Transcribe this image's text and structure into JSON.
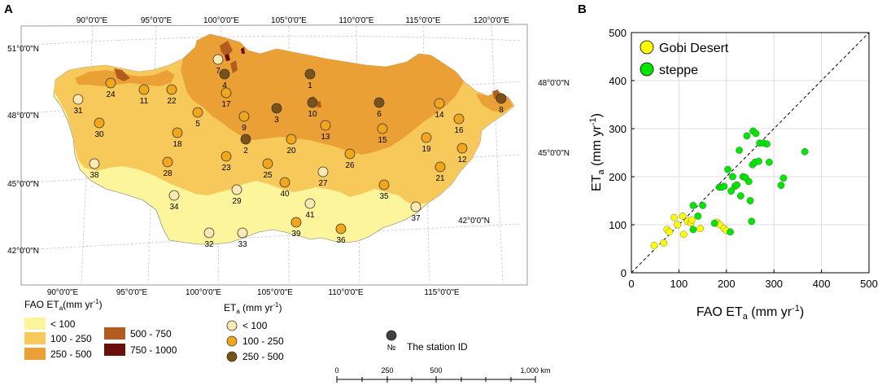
{
  "panel_a": {
    "letter": "A",
    "top_lon_labels": [
      "90°0'0\"E",
      "95°0'0\"E",
      "100°0'0\"E",
      "105°0'0\"E",
      "110°0'0\"E",
      "115°0'0\"E",
      "120°0'0\"E"
    ],
    "bottom_lon_labels": [
      "90°0'0\"E",
      "95°0'0\"E",
      "100°0'0\"E",
      "105°0'0\"E",
      "110°0'0\"E",
      "115°0'0\"E"
    ],
    "left_lat_labels": [
      "51°0'0\"N",
      "48°0'0\"N",
      "45°0'0\"N",
      "42°0'0\"N"
    ],
    "right_lat_labels": [
      "48°0'0\"N",
      "45°0'0\"N",
      "42°0'0\"N"
    ],
    "stations": [
      {
        "id": "1",
        "class": "250-500"
      },
      {
        "id": "2",
        "class": "250-500"
      },
      {
        "id": "3",
        "class": "250-500"
      },
      {
        "id": "4",
        "class": "250-500"
      },
      {
        "id": "5",
        "class": "100-250"
      },
      {
        "id": "6",
        "class": "250-500"
      },
      {
        "id": "7",
        "class": "<100"
      },
      {
        "id": "8",
        "class": "250-500"
      },
      {
        "id": "9",
        "class": "100-250"
      },
      {
        "id": "10",
        "class": "250-500"
      },
      {
        "id": "11",
        "class": "100-250"
      },
      {
        "id": "12",
        "class": "100-250"
      },
      {
        "id": "13",
        "class": "100-250"
      },
      {
        "id": "14",
        "class": "100-250"
      },
      {
        "id": "15",
        "class": "100-250"
      },
      {
        "id": "16",
        "class": "100-250"
      },
      {
        "id": "17",
        "class": "100-250"
      },
      {
        "id": "18",
        "class": "100-250"
      },
      {
        "id": "19",
        "class": "100-250"
      },
      {
        "id": "20",
        "class": "100-250"
      },
      {
        "id": "21",
        "class": "100-250"
      },
      {
        "id": "22",
        "class": "100-250"
      },
      {
        "id": "23",
        "class": "100-250"
      },
      {
        "id": "24",
        "class": "100-250"
      },
      {
        "id": "25",
        "class": "100-250"
      },
      {
        "id": "26",
        "class": "100-250"
      },
      {
        "id": "27",
        "class": "<100"
      },
      {
        "id": "28",
        "class": "100-250"
      },
      {
        "id": "29",
        "class": "<100"
      },
      {
        "id": "30",
        "class": "100-250"
      },
      {
        "id": "31",
        "class": "<100"
      },
      {
        "id": "32",
        "class": "<100"
      },
      {
        "id": "33",
        "class": "<100"
      },
      {
        "id": "34",
        "class": "<100"
      },
      {
        "id": "35",
        "class": "100-250"
      },
      {
        "id": "36",
        "class": "100-250"
      },
      {
        "id": "37",
        "class": "<100"
      },
      {
        "id": "38",
        "class": "<100"
      },
      {
        "id": "39",
        "class": "100-250"
      },
      {
        "id": "40",
        "class": "100-250"
      },
      {
        "id": "41",
        "class": "<100"
      }
    ],
    "legend_fao": {
      "title_main": "FAO ET",
      "title_sub": "a",
      "title_unit": "(mm yr",
      "title_exp": "-1",
      "title_close": ")",
      "items": [
        {
          "label": "< 100",
          "color": "#fdf59b"
        },
        {
          "label": "100 - 250",
          "color": "#f6c95a"
        },
        {
          "label": "250 - 500",
          "color": "#eaa035"
        },
        {
          "label": "500 - 750",
          "color": "#b35c1f"
        },
        {
          "label": "750 - 1000",
          "color": "#6b0f0b"
        }
      ]
    },
    "legend_eta": {
      "title_main": "ET",
      "title_sub": "a",
      "title_unit": " (mm yr",
      "title_exp": "-1",
      "title_close": ")",
      "items": [
        {
          "label": "< 100",
          "color": "#fbe9b4"
        },
        {
          "label": "100 - 250",
          "color": "#f2a61a"
        },
        {
          "label": "250 - 500",
          "color": "#7a5116"
        }
      ]
    },
    "legend_station": {
      "symbol": "№",
      "label": "The station ID",
      "color": "#404040"
    },
    "scalebar": {
      "labels": [
        "0",
        "250",
        "500",
        "1,000 km"
      ]
    }
  },
  "chart_data": {
    "type": "scatter",
    "panel_letter": "B",
    "xlabel_main": "FAO ET",
    "xlabel_sub": "a",
    "xlabel_unit": " (mm yr",
    "xlabel_exp": "-1",
    "xlabel_close": ")",
    "ylabel_main": "ET",
    "ylabel_sub": "a",
    "ylabel_unit": " (mm yr",
    "ylabel_exp": "-1",
    "ylabel_close": ")",
    "xlim": [
      0,
      500
    ],
    "ylim": [
      0,
      500
    ],
    "xticks": [
      0,
      100,
      200,
      300,
      400,
      500
    ],
    "yticks": [
      0,
      100,
      200,
      300,
      400,
      500
    ],
    "grid": true,
    "one_to_one_line": true,
    "legend_position": "top-left",
    "series": [
      {
        "name": "Gobi Desert",
        "color": "#ffff00",
        "points": [
          [
            48,
            57
          ],
          [
            68,
            62
          ],
          [
            75,
            90
          ],
          [
            80,
            85
          ],
          [
            90,
            115
          ],
          [
            97,
            100
          ],
          [
            108,
            118
          ],
          [
            110,
            80
          ],
          [
            118,
            107
          ],
          [
            125,
            104
          ],
          [
            127,
            110
          ],
          [
            145,
            92
          ],
          [
            180,
            105
          ],
          [
            186,
            100
          ],
          [
            195,
            92
          ],
          [
            200,
            88
          ]
        ]
      },
      {
        "name": "steppe",
        "color": "#00e600",
        "points": [
          [
            130,
            140
          ],
          [
            130,
            90
          ],
          [
            140,
            118
          ],
          [
            150,
            140
          ],
          [
            175,
            103
          ],
          [
            185,
            178
          ],
          [
            190,
            178
          ],
          [
            195,
            180
          ],
          [
            203,
            215
          ],
          [
            208,
            85
          ],
          [
            210,
            170
          ],
          [
            213,
            200
          ],
          [
            218,
            180
          ],
          [
            222,
            183
          ],
          [
            227,
            255
          ],
          [
            230,
            160
          ],
          [
            235,
            200
          ],
          [
            240,
            198
          ],
          [
            243,
            285
          ],
          [
            247,
            190
          ],
          [
            250,
            150
          ],
          [
            253,
            107
          ],
          [
            255,
            225
          ],
          [
            256,
            295
          ],
          [
            260,
            230
          ],
          [
            262,
            290
          ],
          [
            268,
            232
          ],
          [
            270,
            270
          ],
          [
            278,
            270
          ],
          [
            285,
            268
          ],
          [
            290,
            230
          ],
          [
            315,
            182
          ],
          [
            320,
            197
          ],
          [
            365,
            252
          ]
        ]
      }
    ]
  }
}
